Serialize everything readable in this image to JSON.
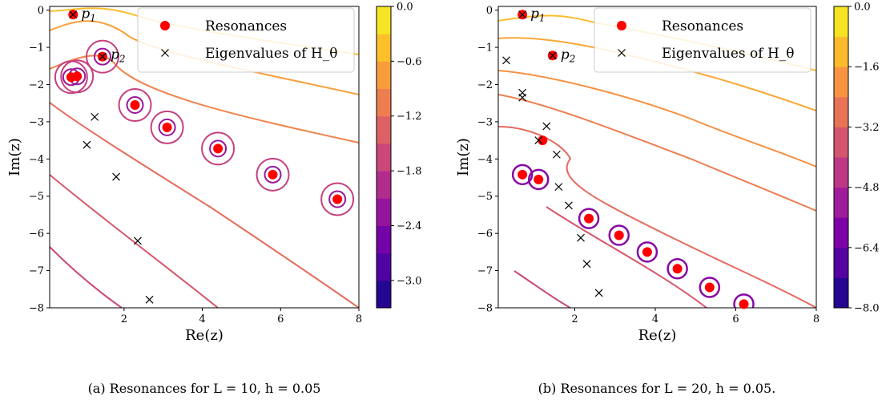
{
  "chart_data": [
    {
      "type": "scatter",
      "subtype": "contour",
      "caption": "(a) Resonances for L = 10, h = 0.05",
      "xlabel": "Re(z)",
      "ylabel": "Im(z)",
      "xlim": [
        0.1,
        8
      ],
      "ylim": [
        -8,
        0.1
      ],
      "x_ticks": [
        2,
        4,
        6,
        8
      ],
      "y_ticks": [
        0,
        -1,
        -2,
        -3,
        -4,
        -5,
        -6,
        -7,
        -8
      ],
      "legend": {
        "position": "top-right",
        "entries": [
          "Resonances",
          "Eigenvalues of H_θ"
        ]
      },
      "point_labels": [
        {
          "text": "p1",
          "x": 0.7,
          "y": -0.1
        },
        {
          "text": "p2",
          "x": 1.45,
          "y": -1.2
        }
      ],
      "colorbar": {
        "ticks": [
          "0.0",
          "−0.6",
          "−1.2",
          "−1.8",
          "−2.4",
          "−3.0"
        ],
        "tick_values": [
          0.0,
          -0.6,
          -1.2,
          -1.8,
          -2.4,
          -3.0
        ],
        "min": -3.3,
        "max": 0.0,
        "levels": 11
      },
      "series": [
        {
          "name": "Resonances",
          "x": [
            0.7,
            0.65,
            0.8,
            1.45,
            2.28,
            3.1,
            4.4,
            5.8,
            7.45
          ],
          "y": [
            -0.12,
            -1.8,
            -1.78,
            -1.25,
            -2.55,
            -3.15,
            -3.72,
            -4.42,
            -5.08
          ]
        },
        {
          "name": "Eigenvalues of H_θ",
          "x": [
            0.7,
            1.45,
            1.25,
            1.05,
            1.8,
            2.35,
            2.65
          ],
          "y": [
            -0.12,
            -1.25,
            -2.87,
            -3.62,
            -4.48,
            -6.2,
            -7.78
          ]
        }
      ]
    },
    {
      "type": "scatter",
      "subtype": "contour",
      "caption": "(b) Resonances for L = 20, h = 0.05.",
      "xlabel": "Re(z)",
      "ylabel": "Im(z)",
      "xlim": [
        0.1,
        8
      ],
      "ylim": [
        -8,
        0.1
      ],
      "x_ticks": [
        2,
        4,
        6,
        8
      ],
      "y_ticks": [
        0,
        -1,
        -2,
        -3,
        -4,
        -5,
        -6,
        -7,
        -8
      ],
      "legend": {
        "position": "top-right",
        "entries": [
          "Resonances",
          "Eigenvalues of H_θ"
        ]
      },
      "point_labels": [
        {
          "text": "p1",
          "x": 0.7,
          "y": -0.1
        },
        {
          "text": "p2",
          "x": 1.45,
          "y": -1.2
        }
      ],
      "colorbar": {
        "ticks": [
          "0.0",
          "−1.6",
          "−3.2",
          "−4.8",
          "−6.4",
          "−8.0"
        ],
        "tick_values": [
          0.0,
          -1.6,
          -3.2,
          -4.8,
          -6.4,
          -8.0
        ],
        "min": -8.0,
        "max": 0.0,
        "levels": 10
      },
      "series": [
        {
          "name": "Resonances",
          "x": [
            0.7,
            1.45,
            1.2,
            0.7,
            1.1,
            2.35,
            3.1,
            3.8,
            4.55,
            5.35,
            6.2
          ],
          "y": [
            -0.12,
            -1.22,
            -3.5,
            -4.42,
            -4.55,
            -5.6,
            -6.05,
            -6.5,
            -6.95,
            -7.45,
            -7.9
          ]
        },
        {
          "name": "Eigenvalues of H_θ",
          "x": [
            0.7,
            1.45,
            0.3,
            0.7,
            0.7,
            1.3,
            1.1,
            1.55,
            1.6,
            1.85,
            2.15,
            2.3,
            2.6
          ],
          "y": [
            -0.12,
            -1.22,
            -1.35,
            -2.22,
            -2.35,
            -3.12,
            -3.5,
            -3.88,
            -4.75,
            -5.25,
            -6.12,
            -6.82,
            -7.6
          ]
        }
      ]
    }
  ]
}
